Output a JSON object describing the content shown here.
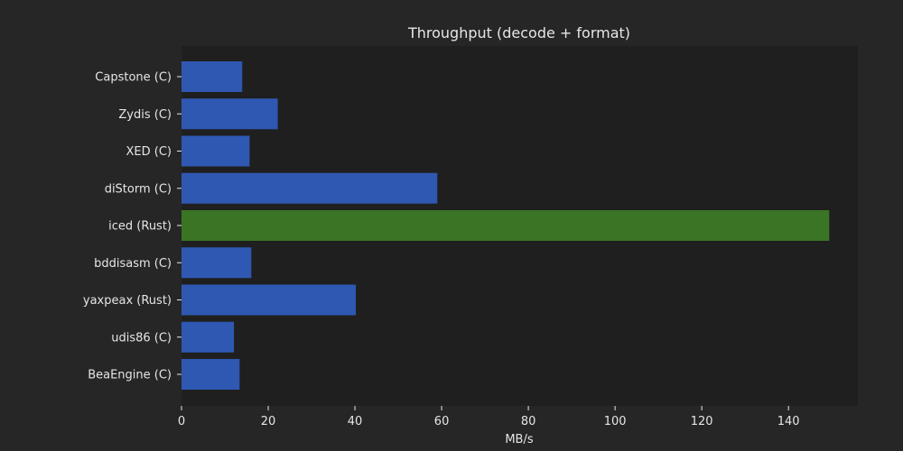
{
  "chart_data": {
    "type": "bar",
    "orientation": "horizontal",
    "title": "Throughput (decode + format)",
    "xlabel": "MB/s",
    "ylabel": "",
    "xlim": [
      0,
      156
    ],
    "xticks": [
      0,
      20,
      40,
      60,
      80,
      100,
      120,
      140
    ],
    "grid": false,
    "legend": "none",
    "categories": [
      "Capstone (C)",
      "Zydis (C)",
      "XED (C)",
      "diStorm (C)",
      "iced (Rust)",
      "bddisasm (C)",
      "yaxpeax (Rust)",
      "udis86 (C)",
      "BeaEngine (C)"
    ],
    "values": [
      14,
      22.2,
      15.7,
      59,
      149.4,
      16.1,
      40.2,
      12.1,
      13.4
    ],
    "bar_colors": [
      "#2f58b3",
      "#2f58b3",
      "#2f58b3",
      "#2f58b3",
      "#3a7525",
      "#2f58b3",
      "#2f58b3",
      "#2f58b3",
      "#2f58b3"
    ]
  },
  "colors": {
    "background": "#262626",
    "plot_background": "#1f1f1f",
    "text": "#e6e6e6",
    "axis": "#e6e6e6"
  }
}
